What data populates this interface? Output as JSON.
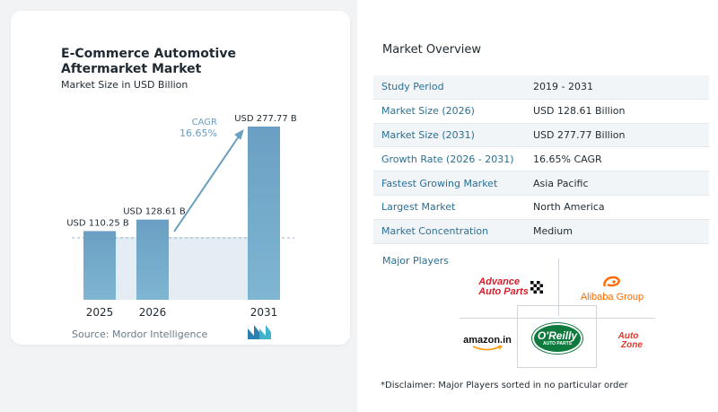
{
  "chart_data": {
    "type": "bar",
    "title": "E-Commerce Automotive Aftermarket Market",
    "subtitle": "Market Size in USD Billion",
    "categories": [
      "2025",
      "2026",
      "2031"
    ],
    "values": [
      110.25,
      128.61,
      277.77
    ],
    "data_labels": [
      "USD 110.25 B",
      "USD 128.61 B",
      "USD 277.77 B"
    ],
    "unit": "USD Billion",
    "cagr_label": "CAGR",
    "cagr_value": "16.65%",
    "colors": {
      "bar": "#6aa2c4",
      "bar_light": "#a9c9dd",
      "shade": "#dfe9f1",
      "arrow": "#6a9fc0"
    }
  },
  "source": "Source:  Mordor Intelligence",
  "overview": {
    "title": "Market Overview",
    "rows": [
      {
        "label": "Study Period",
        "value": "2019 - 2031"
      },
      {
        "label": "Market Size (2026)",
        "value": "USD 128.61 Billion"
      },
      {
        "label": "Market Size (2031)",
        "value": "USD 277.77 Billion"
      },
      {
        "label": "Growth Rate (2026 - 2031)",
        "value": "16.65% CAGR"
      },
      {
        "label": "Fastest Growing Market",
        "value": "Asia Pacific"
      },
      {
        "label": "Largest Market",
        "value": "North America"
      },
      {
        "label": "Market Concentration",
        "value": "Medium"
      }
    ]
  },
  "players": {
    "title": "Major Players",
    "logos": {
      "advance_1": "Advance",
      "advance_2": "Auto Parts",
      "alibaba": "Alibaba Group",
      "amazon": "amazon.in",
      "oreilly_1": "O'Reilly",
      "oreilly_2": "AUTO PARTS",
      "autozone_1": "Auto",
      "autozone_2": "Zone"
    }
  },
  "disclaimer": "*Disclaimer: Major Players sorted in no particular order"
}
